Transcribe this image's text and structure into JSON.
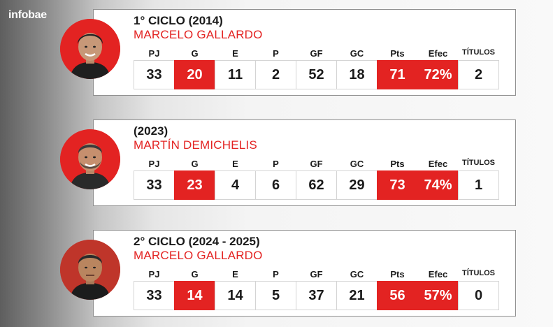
{
  "brand": {
    "logo_text": "infobae"
  },
  "colors": {
    "accent": "#e32322",
    "text": "#1a1a1a",
    "card_border": "#8f8f8f"
  },
  "stat_labels": [
    "PJ",
    "G",
    "E",
    "P",
    "GF",
    "GC",
    "Pts",
    "Efec",
    "TÍTULOS"
  ],
  "highlighted_columns": [
    "G",
    "Pts",
    "Efec"
  ],
  "cards": [
    {
      "title": "1° CICLO (2014)",
      "coach": "MARCELO GALLARDO",
      "avatar": "coach-photo-icon",
      "values": [
        "33",
        "20",
        "11",
        "2",
        "52",
        "18",
        "71",
        "72%",
        "2"
      ]
    },
    {
      "title": "(2023)",
      "coach": "MARTÍN DEMICHELIS",
      "avatar": "coach-photo-icon",
      "values": [
        "33",
        "23",
        "4",
        "6",
        "62",
        "29",
        "73",
        "74%",
        "1"
      ]
    },
    {
      "title": "2° CICLO (2024 - 2025)",
      "coach": "MARCELO GALLARDO",
      "avatar": "coach-photo-icon",
      "values": [
        "33",
        "14",
        "14",
        "5",
        "37",
        "21",
        "56",
        "57%",
        "0"
      ]
    }
  ]
}
